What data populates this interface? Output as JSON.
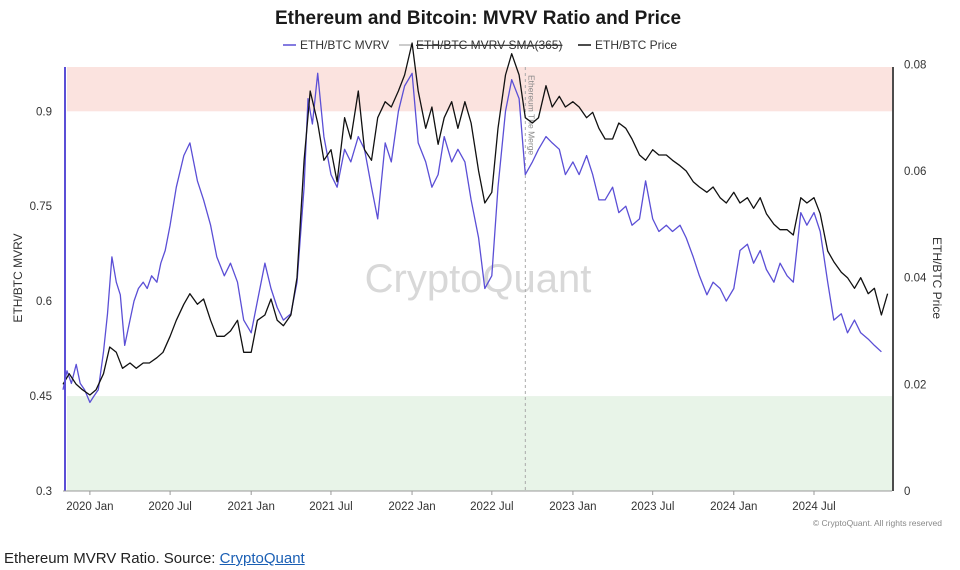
{
  "caption": {
    "prefix": "Ethereum MVRV Ratio. Source: ",
    "link_text": "CryptoQuant"
  },
  "chart_data": {
    "type": "line",
    "title": "Ethereum and Bitcoin: MVRV Ratio and Price",
    "ylabel_left": "ETH/BTC MVRV",
    "ylabel_right": "ETH/BTC Price",
    "ylim_left": [
      0.3,
      0.97
    ],
    "ylim_right": [
      0,
      0.0795
    ],
    "left_ticks": [
      "0.3",
      "0.45",
      "0.6",
      "0.75",
      "0.9"
    ],
    "right_ticks": [
      "0",
      "0.02",
      "0.04",
      "0.06",
      "0.08"
    ],
    "xlim": [
      "2019-11-01",
      "2024-12-25"
    ],
    "x_ticks": [
      {
        "date": "2020-01-01",
        "label": "2020 Jan"
      },
      {
        "date": "2020-07-01",
        "label": "2020 Jul"
      },
      {
        "date": "2021-01-01",
        "label": "2021 Jan"
      },
      {
        "date": "2021-07-01",
        "label": "2021 Jul"
      },
      {
        "date": "2022-01-01",
        "label": "2022 Jan"
      },
      {
        "date": "2022-07-01",
        "label": "2022 Jul"
      },
      {
        "date": "2023-01-01",
        "label": "2023 Jan"
      },
      {
        "date": "2023-07-01",
        "label": "2023 Jul"
      },
      {
        "date": "2024-01-01",
        "label": "2024 Jan"
      },
      {
        "date": "2024-07-01",
        "label": "2024 Jul"
      }
    ],
    "bands": [
      {
        "from": 0.9,
        "to": 0.97,
        "color": "#fbe3df"
      },
      {
        "from": 0.3,
        "to": 0.45,
        "color": "#e8f4e8"
      }
    ],
    "annotation": {
      "date": "2022-09-15",
      "text": "Ethereum The Merge"
    },
    "watermark": "CryptoQuant",
    "copyright": "© CryptoQuant. All rights reserved",
    "grid": false,
    "legend_position": "top-center",
    "series": [
      {
        "name": "ETH/BTC MVRV",
        "axis": "left",
        "color": "#5b4fd6",
        "points": [
          [
            "2019-11-01",
            0.46
          ],
          [
            "2019-11-10",
            0.49
          ],
          [
            "2019-11-20",
            0.47
          ],
          [
            "2019-12-01",
            0.5
          ],
          [
            "2019-12-10",
            0.47
          ],
          [
            "2019-12-20",
            0.46
          ],
          [
            "2020-01-01",
            0.44
          ],
          [
            "2020-01-10",
            0.45
          ],
          [
            "2020-01-20",
            0.46
          ],
          [
            "2020-02-01",
            0.52
          ],
          [
            "2020-02-10",
            0.58
          ],
          [
            "2020-02-20",
            0.67
          ],
          [
            "2020-03-01",
            0.63
          ],
          [
            "2020-03-10",
            0.61
          ],
          [
            "2020-03-20",
            0.53
          ],
          [
            "2020-04-01",
            0.57
          ],
          [
            "2020-04-10",
            0.6
          ],
          [
            "2020-04-20",
            0.62
          ],
          [
            "2020-05-01",
            0.63
          ],
          [
            "2020-05-10",
            0.62
          ],
          [
            "2020-05-20",
            0.64
          ],
          [
            "2020-06-01",
            0.63
          ],
          [
            "2020-06-10",
            0.66
          ],
          [
            "2020-06-20",
            0.68
          ],
          [
            "2020-07-01",
            0.72
          ],
          [
            "2020-07-15",
            0.78
          ],
          [
            "2020-08-01",
            0.83
          ],
          [
            "2020-08-15",
            0.85
          ],
          [
            "2020-09-01",
            0.79
          ],
          [
            "2020-09-15",
            0.76
          ],
          [
            "2020-10-01",
            0.72
          ],
          [
            "2020-10-15",
            0.67
          ],
          [
            "2020-11-01",
            0.64
          ],
          [
            "2020-11-15",
            0.66
          ],
          [
            "2020-12-01",
            0.63
          ],
          [
            "2020-12-15",
            0.57
          ],
          [
            "2021-01-01",
            0.55
          ],
          [
            "2021-01-15",
            0.6
          ],
          [
            "2021-02-01",
            0.66
          ],
          [
            "2021-02-15",
            0.62
          ],
          [
            "2021-03-01",
            0.59
          ],
          [
            "2021-03-15",
            0.57
          ],
          [
            "2021-04-01",
            0.58
          ],
          [
            "2021-04-15",
            0.63
          ],
          [
            "2021-05-01",
            0.78
          ],
          [
            "2021-05-10",
            0.92
          ],
          [
            "2021-05-20",
            0.88
          ],
          [
            "2021-06-01",
            0.96
          ],
          [
            "2021-06-15",
            0.86
          ],
          [
            "2021-07-01",
            0.8
          ],
          [
            "2021-07-15",
            0.78
          ],
          [
            "2021-08-01",
            0.84
          ],
          [
            "2021-08-15",
            0.82
          ],
          [
            "2021-09-01",
            0.86
          ],
          [
            "2021-09-15",
            0.84
          ],
          [
            "2021-10-01",
            0.78
          ],
          [
            "2021-10-15",
            0.73
          ],
          [
            "2021-11-01",
            0.85
          ],
          [
            "2021-11-15",
            0.82
          ],
          [
            "2021-12-01",
            0.9
          ],
          [
            "2021-12-15",
            0.94
          ],
          [
            "2022-01-01",
            0.96
          ],
          [
            "2022-01-15",
            0.85
          ],
          [
            "2022-02-01",
            0.82
          ],
          [
            "2022-02-15",
            0.78
          ],
          [
            "2022-03-01",
            0.8
          ],
          [
            "2022-03-15",
            0.86
          ],
          [
            "2022-04-01",
            0.82
          ],
          [
            "2022-04-15",
            0.84
          ],
          [
            "2022-05-01",
            0.82
          ],
          [
            "2022-05-15",
            0.76
          ],
          [
            "2022-06-01",
            0.7
          ],
          [
            "2022-06-15",
            0.62
          ],
          [
            "2022-07-01",
            0.64
          ],
          [
            "2022-07-15",
            0.78
          ],
          [
            "2022-08-01",
            0.9
          ],
          [
            "2022-08-15",
            0.95
          ],
          [
            "2022-09-01",
            0.92
          ],
          [
            "2022-09-15",
            0.8
          ],
          [
            "2022-10-01",
            0.82
          ],
          [
            "2022-10-15",
            0.84
          ],
          [
            "2022-11-01",
            0.86
          ],
          [
            "2022-11-15",
            0.85
          ],
          [
            "2022-12-01",
            0.84
          ],
          [
            "2022-12-15",
            0.8
          ],
          [
            "2023-01-01",
            0.82
          ],
          [
            "2023-01-15",
            0.8
          ],
          [
            "2023-02-01",
            0.83
          ],
          [
            "2023-02-15",
            0.8
          ],
          [
            "2023-03-01",
            0.76
          ],
          [
            "2023-03-15",
            0.76
          ],
          [
            "2023-04-01",
            0.78
          ],
          [
            "2023-04-15",
            0.74
          ],
          [
            "2023-05-01",
            0.75
          ],
          [
            "2023-05-15",
            0.72
          ],
          [
            "2023-06-01",
            0.73
          ],
          [
            "2023-06-15",
            0.79
          ],
          [
            "2023-07-01",
            0.73
          ],
          [
            "2023-07-15",
            0.71
          ],
          [
            "2023-08-01",
            0.72
          ],
          [
            "2023-08-15",
            0.71
          ],
          [
            "2023-09-01",
            0.72
          ],
          [
            "2023-09-15",
            0.7
          ],
          [
            "2023-10-01",
            0.67
          ],
          [
            "2023-10-15",
            0.64
          ],
          [
            "2023-11-01",
            0.61
          ],
          [
            "2023-11-15",
            0.63
          ],
          [
            "2023-12-01",
            0.62
          ],
          [
            "2023-12-15",
            0.6
          ],
          [
            "2024-01-01",
            0.62
          ],
          [
            "2024-01-15",
            0.68
          ],
          [
            "2024-02-01",
            0.69
          ],
          [
            "2024-02-15",
            0.66
          ],
          [
            "2024-03-01",
            0.68
          ],
          [
            "2024-03-15",
            0.65
          ],
          [
            "2024-04-01",
            0.63
          ],
          [
            "2024-04-15",
            0.66
          ],
          [
            "2024-05-01",
            0.64
          ],
          [
            "2024-05-15",
            0.63
          ],
          [
            "2024-06-01",
            0.74
          ],
          [
            "2024-06-15",
            0.72
          ],
          [
            "2024-07-01",
            0.74
          ],
          [
            "2024-07-15",
            0.71
          ],
          [
            "2024-08-01",
            0.63
          ],
          [
            "2024-08-15",
            0.57
          ],
          [
            "2024-09-01",
            0.58
          ],
          [
            "2024-09-15",
            0.55
          ],
          [
            "2024-10-01",
            0.57
          ],
          [
            "2024-10-15",
            0.55
          ],
          [
            "2024-11-01",
            0.54
          ],
          [
            "2024-11-15",
            0.53
          ],
          [
            "2024-12-01",
            0.52
          ]
        ]
      },
      {
        "name": "ETH/BTC MVRV SMA(365)",
        "axis": "left",
        "color": "#cccccc",
        "hidden": true,
        "points": []
      },
      {
        "name": "ETH/BTC Price",
        "axis": "right",
        "color": "#111111",
        "points": [
          [
            "2019-11-01",
            0.02
          ],
          [
            "2019-11-15",
            0.022
          ],
          [
            "2019-12-01",
            0.02
          ],
          [
            "2019-12-15",
            0.019
          ],
          [
            "2020-01-01",
            0.018
          ],
          [
            "2020-01-15",
            0.019
          ],
          [
            "2020-02-01",
            0.022
          ],
          [
            "2020-02-15",
            0.027
          ],
          [
            "2020-03-01",
            0.026
          ],
          [
            "2020-03-15",
            0.023
          ],
          [
            "2020-04-01",
            0.024
          ],
          [
            "2020-04-15",
            0.023
          ],
          [
            "2020-05-01",
            0.024
          ],
          [
            "2020-05-15",
            0.024
          ],
          [
            "2020-06-01",
            0.025
          ],
          [
            "2020-06-15",
            0.026
          ],
          [
            "2020-07-01",
            0.029
          ],
          [
            "2020-07-15",
            0.032
          ],
          [
            "2020-08-01",
            0.035
          ],
          [
            "2020-08-15",
            0.037
          ],
          [
            "2020-09-01",
            0.035
          ],
          [
            "2020-09-15",
            0.036
          ],
          [
            "2020-10-01",
            0.032
          ],
          [
            "2020-10-15",
            0.029
          ],
          [
            "2020-11-01",
            0.029
          ],
          [
            "2020-11-15",
            0.03
          ],
          [
            "2020-12-01",
            0.032
          ],
          [
            "2020-12-15",
            0.026
          ],
          [
            "2021-01-01",
            0.026
          ],
          [
            "2021-01-15",
            0.032
          ],
          [
            "2021-02-01",
            0.033
          ],
          [
            "2021-02-15",
            0.036
          ],
          [
            "2021-03-01",
            0.032
          ],
          [
            "2021-03-15",
            0.031
          ],
          [
            "2021-04-01",
            0.033
          ],
          [
            "2021-04-15",
            0.04
          ],
          [
            "2021-05-01",
            0.062
          ],
          [
            "2021-05-15",
            0.075
          ],
          [
            "2021-06-01",
            0.069
          ],
          [
            "2021-06-15",
            0.062
          ],
          [
            "2021-07-01",
            0.064
          ],
          [
            "2021-07-15",
            0.058
          ],
          [
            "2021-08-01",
            0.07
          ],
          [
            "2021-08-15",
            0.066
          ],
          [
            "2021-09-01",
            0.075
          ],
          [
            "2021-09-15",
            0.064
          ],
          [
            "2021-10-01",
            0.062
          ],
          [
            "2021-10-15",
            0.07
          ],
          [
            "2021-11-01",
            0.073
          ],
          [
            "2021-11-15",
            0.072
          ],
          [
            "2021-12-01",
            0.075
          ],
          [
            "2021-12-15",
            0.078
          ],
          [
            "2022-01-01",
            0.084
          ],
          [
            "2022-01-15",
            0.075
          ],
          [
            "2022-02-01",
            0.068
          ],
          [
            "2022-02-15",
            0.072
          ],
          [
            "2022-03-01",
            0.065
          ],
          [
            "2022-03-15",
            0.07
          ],
          [
            "2022-04-01",
            0.073
          ],
          [
            "2022-04-15",
            0.068
          ],
          [
            "2022-05-01",
            0.073
          ],
          [
            "2022-05-15",
            0.069
          ],
          [
            "2022-06-01",
            0.06
          ],
          [
            "2022-06-15",
            0.054
          ],
          [
            "2022-07-01",
            0.056
          ],
          [
            "2022-07-15",
            0.068
          ],
          [
            "2022-08-01",
            0.078
          ],
          [
            "2022-08-15",
            0.082
          ],
          [
            "2022-09-01",
            0.078
          ],
          [
            "2022-09-15",
            0.07
          ],
          [
            "2022-10-01",
            0.069
          ],
          [
            "2022-10-15",
            0.07
          ],
          [
            "2022-11-01",
            0.076
          ],
          [
            "2022-11-15",
            0.072
          ],
          [
            "2022-12-01",
            0.074
          ],
          [
            "2022-12-15",
            0.072
          ],
          [
            "2023-01-01",
            0.073
          ],
          [
            "2023-01-15",
            0.072
          ],
          [
            "2023-02-01",
            0.07
          ],
          [
            "2023-02-15",
            0.071
          ],
          [
            "2023-03-01",
            0.068
          ],
          [
            "2023-03-15",
            0.066
          ],
          [
            "2023-04-01",
            0.066
          ],
          [
            "2023-04-15",
            0.069
          ],
          [
            "2023-05-01",
            0.068
          ],
          [
            "2023-05-15",
            0.066
          ],
          [
            "2023-06-01",
            0.063
          ],
          [
            "2023-06-15",
            0.062
          ],
          [
            "2023-07-01",
            0.064
          ],
          [
            "2023-07-15",
            0.063
          ],
          [
            "2023-08-01",
            0.063
          ],
          [
            "2023-08-15",
            0.062
          ],
          [
            "2023-09-01",
            0.061
          ],
          [
            "2023-09-15",
            0.06
          ],
          [
            "2023-10-01",
            0.058
          ],
          [
            "2023-10-15",
            0.057
          ],
          [
            "2023-11-01",
            0.056
          ],
          [
            "2023-11-15",
            0.057
          ],
          [
            "2023-12-01",
            0.055
          ],
          [
            "2023-12-15",
            0.054
          ],
          [
            "2024-01-01",
            0.056
          ],
          [
            "2024-01-15",
            0.054
          ],
          [
            "2024-02-01",
            0.055
          ],
          [
            "2024-02-15",
            0.053
          ],
          [
            "2024-03-01",
            0.055
          ],
          [
            "2024-03-15",
            0.052
          ],
          [
            "2024-04-01",
            0.05
          ],
          [
            "2024-04-15",
            0.049
          ],
          [
            "2024-05-01",
            0.049
          ],
          [
            "2024-05-15",
            0.048
          ],
          [
            "2024-06-01",
            0.055
          ],
          [
            "2024-06-15",
            0.054
          ],
          [
            "2024-07-01",
            0.055
          ],
          [
            "2024-07-15",
            0.052
          ],
          [
            "2024-08-01",
            0.045
          ],
          [
            "2024-08-15",
            0.043
          ],
          [
            "2024-09-01",
            0.041
          ],
          [
            "2024-09-15",
            0.04
          ],
          [
            "2024-10-01",
            0.038
          ],
          [
            "2024-10-15",
            0.04
          ],
          [
            "2024-11-01",
            0.037
          ],
          [
            "2024-11-15",
            0.038
          ],
          [
            "2024-12-01",
            0.033
          ],
          [
            "2024-12-15",
            0.037
          ]
        ]
      }
    ]
  }
}
